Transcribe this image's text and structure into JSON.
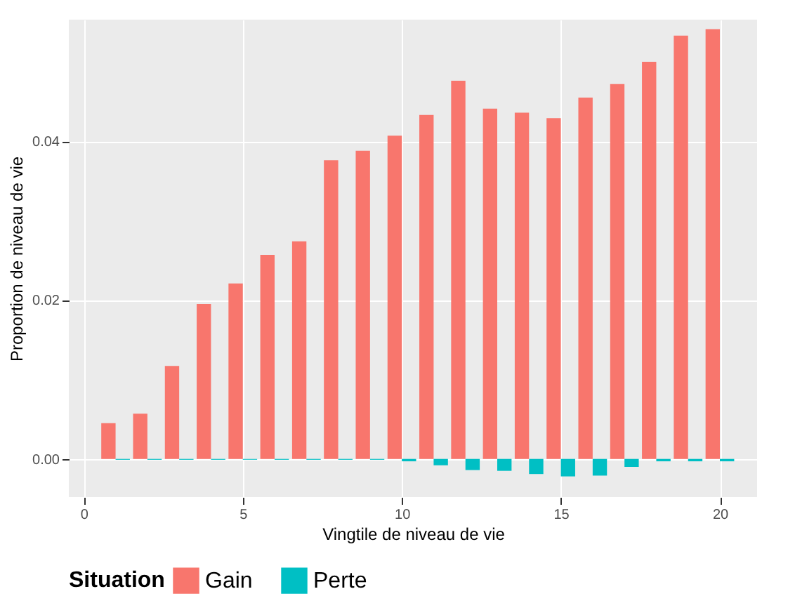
{
  "chart_data": {
    "type": "bar",
    "xlabel": "Vingtile de niveau de vie",
    "ylabel": "Proportion de niveau de vie",
    "legend_title": "Situation",
    "x": [
      1,
      2,
      3,
      4,
      5,
      6,
      7,
      8,
      9,
      10,
      11,
      12,
      13,
      14,
      15,
      16,
      17,
      18,
      19,
      20
    ],
    "series": [
      {
        "name": "Gain",
        "color": "#f8766d",
        "values": [
          0.0045,
          0.0057,
          0.0117,
          0.0195,
          0.0221,
          0.0257,
          0.0274,
          0.0376,
          0.0388,
          0.0407,
          0.0433,
          0.0476,
          0.0441,
          0.0436,
          0.0429,
          0.0455,
          0.0472,
          0.05,
          0.0533,
          0.0541
        ]
      },
      {
        "name": "Perte",
        "color": "#00bfc4",
        "values": [
          -0.0001,
          -0.0001,
          -0.0001,
          -0.0001,
          -0.0001,
          -0.0001,
          -0.0001,
          -0.0001,
          -0.0001,
          -0.0003,
          -0.0008,
          -0.0014,
          -0.0015,
          -0.0019,
          -0.0022,
          -0.0021,
          -0.001,
          -0.0003,
          -0.0003,
          -0.0003
        ]
      }
    ],
    "xlim": [
      -0.47,
      21.17
    ],
    "xticks": [
      0,
      5,
      10,
      15,
      20
    ],
    "ylim": [
      -0.0048,
      0.0553
    ],
    "yticks": [
      {
        "value": 0,
        "label": "0.00"
      },
      {
        "value": 0.02,
        "label": "0.02"
      },
      {
        "value": 0.04,
        "label": "0.04"
      }
    ],
    "grid": true,
    "legend": "bottom"
  }
}
